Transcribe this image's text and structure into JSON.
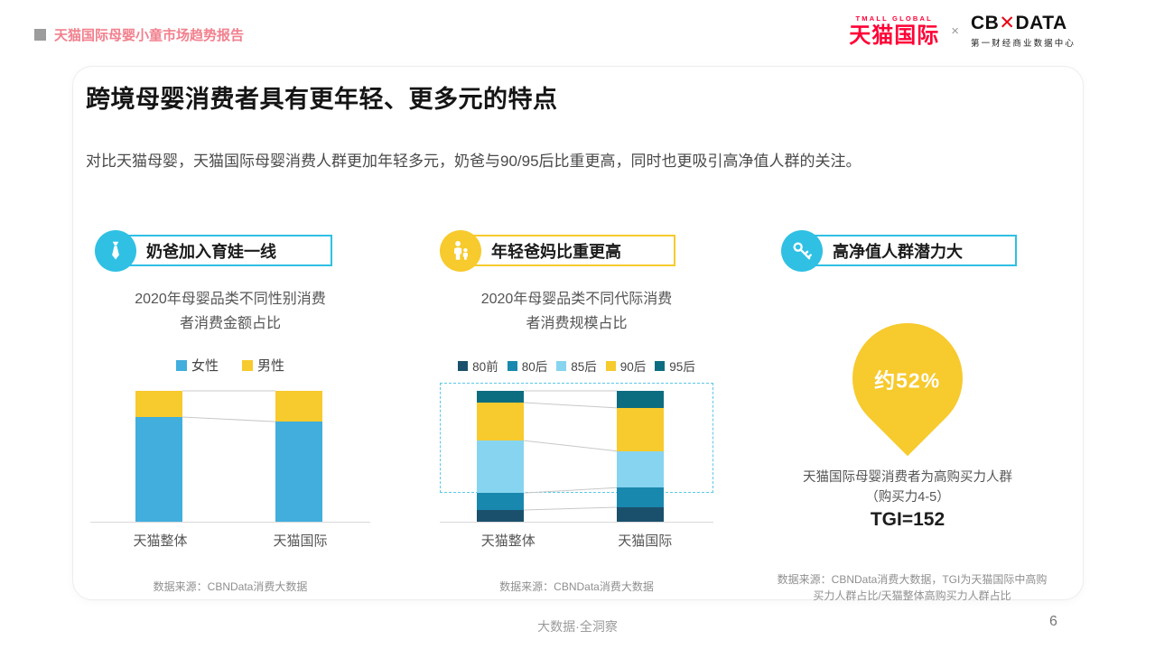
{
  "header": {
    "report_title": "天猫国际母婴小童市场趋势报告",
    "tmall_logo": {
      "top": "TMALL GLOBAL",
      "main": "天猫国际"
    },
    "separator": "×",
    "cbndata_logo": {
      "left": "CB",
      "x": "✕",
      "right": "DATA",
      "subtitle": "第一财经商业数据中心"
    }
  },
  "page": {
    "title": "跨境母婴消费者具有更年轻、更多元的特点",
    "subtitle": "对比天猫母婴，天猫国际母婴消费人群更加年轻多元，奶爸与90/95后比重更高，同时也更吸引高净值人群的关注。"
  },
  "sections": [
    {
      "badge": "奶爸加入育娃一线",
      "icon": "tie-icon",
      "accent": "#2FC0E4"
    },
    {
      "badge": "年轻爸妈比重更高",
      "icon": "family-icon",
      "accent": "#F7CA2D"
    },
    {
      "badge": "高净值人群潜力大",
      "icon": "key-icon",
      "accent": "#2FC0E4"
    }
  ],
  "chart_data": [
    {
      "type": "bar",
      "stacked": true,
      "title_line1": "2020年母婴品类不同性别消费",
      "title_line2": "者消费金额占比",
      "categories": [
        "天猫整体",
        "天猫国际"
      ],
      "series": [
        {
          "name": "女性",
          "color": "#41AEDD",
          "values": [
            80,
            76.5
          ]
        },
        {
          "name": "男性",
          "color": "#F7CA2D",
          "values": [
            20,
            23.5
          ]
        }
      ],
      "ylim": [
        0,
        100
      ],
      "legend_position": "top",
      "source": "数据来源：CBNData消费大数据"
    },
    {
      "type": "bar",
      "stacked": true,
      "title_line1": "2020年母婴品类不同代际消费",
      "title_line2": "者消费规模占比",
      "categories": [
        "天猫整体",
        "天猫国际"
      ],
      "series": [
        {
          "name": "80前",
          "color": "#1A506B",
          "values": [
            9,
            11
          ]
        },
        {
          "name": "80后",
          "color": "#1988AE",
          "values": [
            13,
            15
          ]
        },
        {
          "name": "85后",
          "color": "#86D4F0",
          "values": [
            40,
            28
          ]
        },
        {
          "name": "90后",
          "color": "#F7CA2D",
          "values": [
            29,
            33
          ]
        },
        {
          "name": "95后",
          "color": "#0D6D80",
          "values": [
            9,
            13
          ]
        }
      ],
      "ylim": [
        0,
        100
      ],
      "legend_position": "top",
      "highlight_border": "#5BC8E8",
      "source": "数据来源：CBNData消费大数据"
    },
    {
      "type": "kpi",
      "value": "约52%",
      "color": "#F7CA2D",
      "description_line1": "天猫国际母婴消费者为高购买力人群",
      "description_line2": "（购买力4-5）",
      "tgi": "TGI=152",
      "source": "数据来源：CBNData消费大数据，TGI为天猫国际中高购买力人群占比/天猫整体高购买力人群占比"
    }
  ],
  "footer": {
    "center": "大数据·全洞察",
    "page": "6"
  }
}
